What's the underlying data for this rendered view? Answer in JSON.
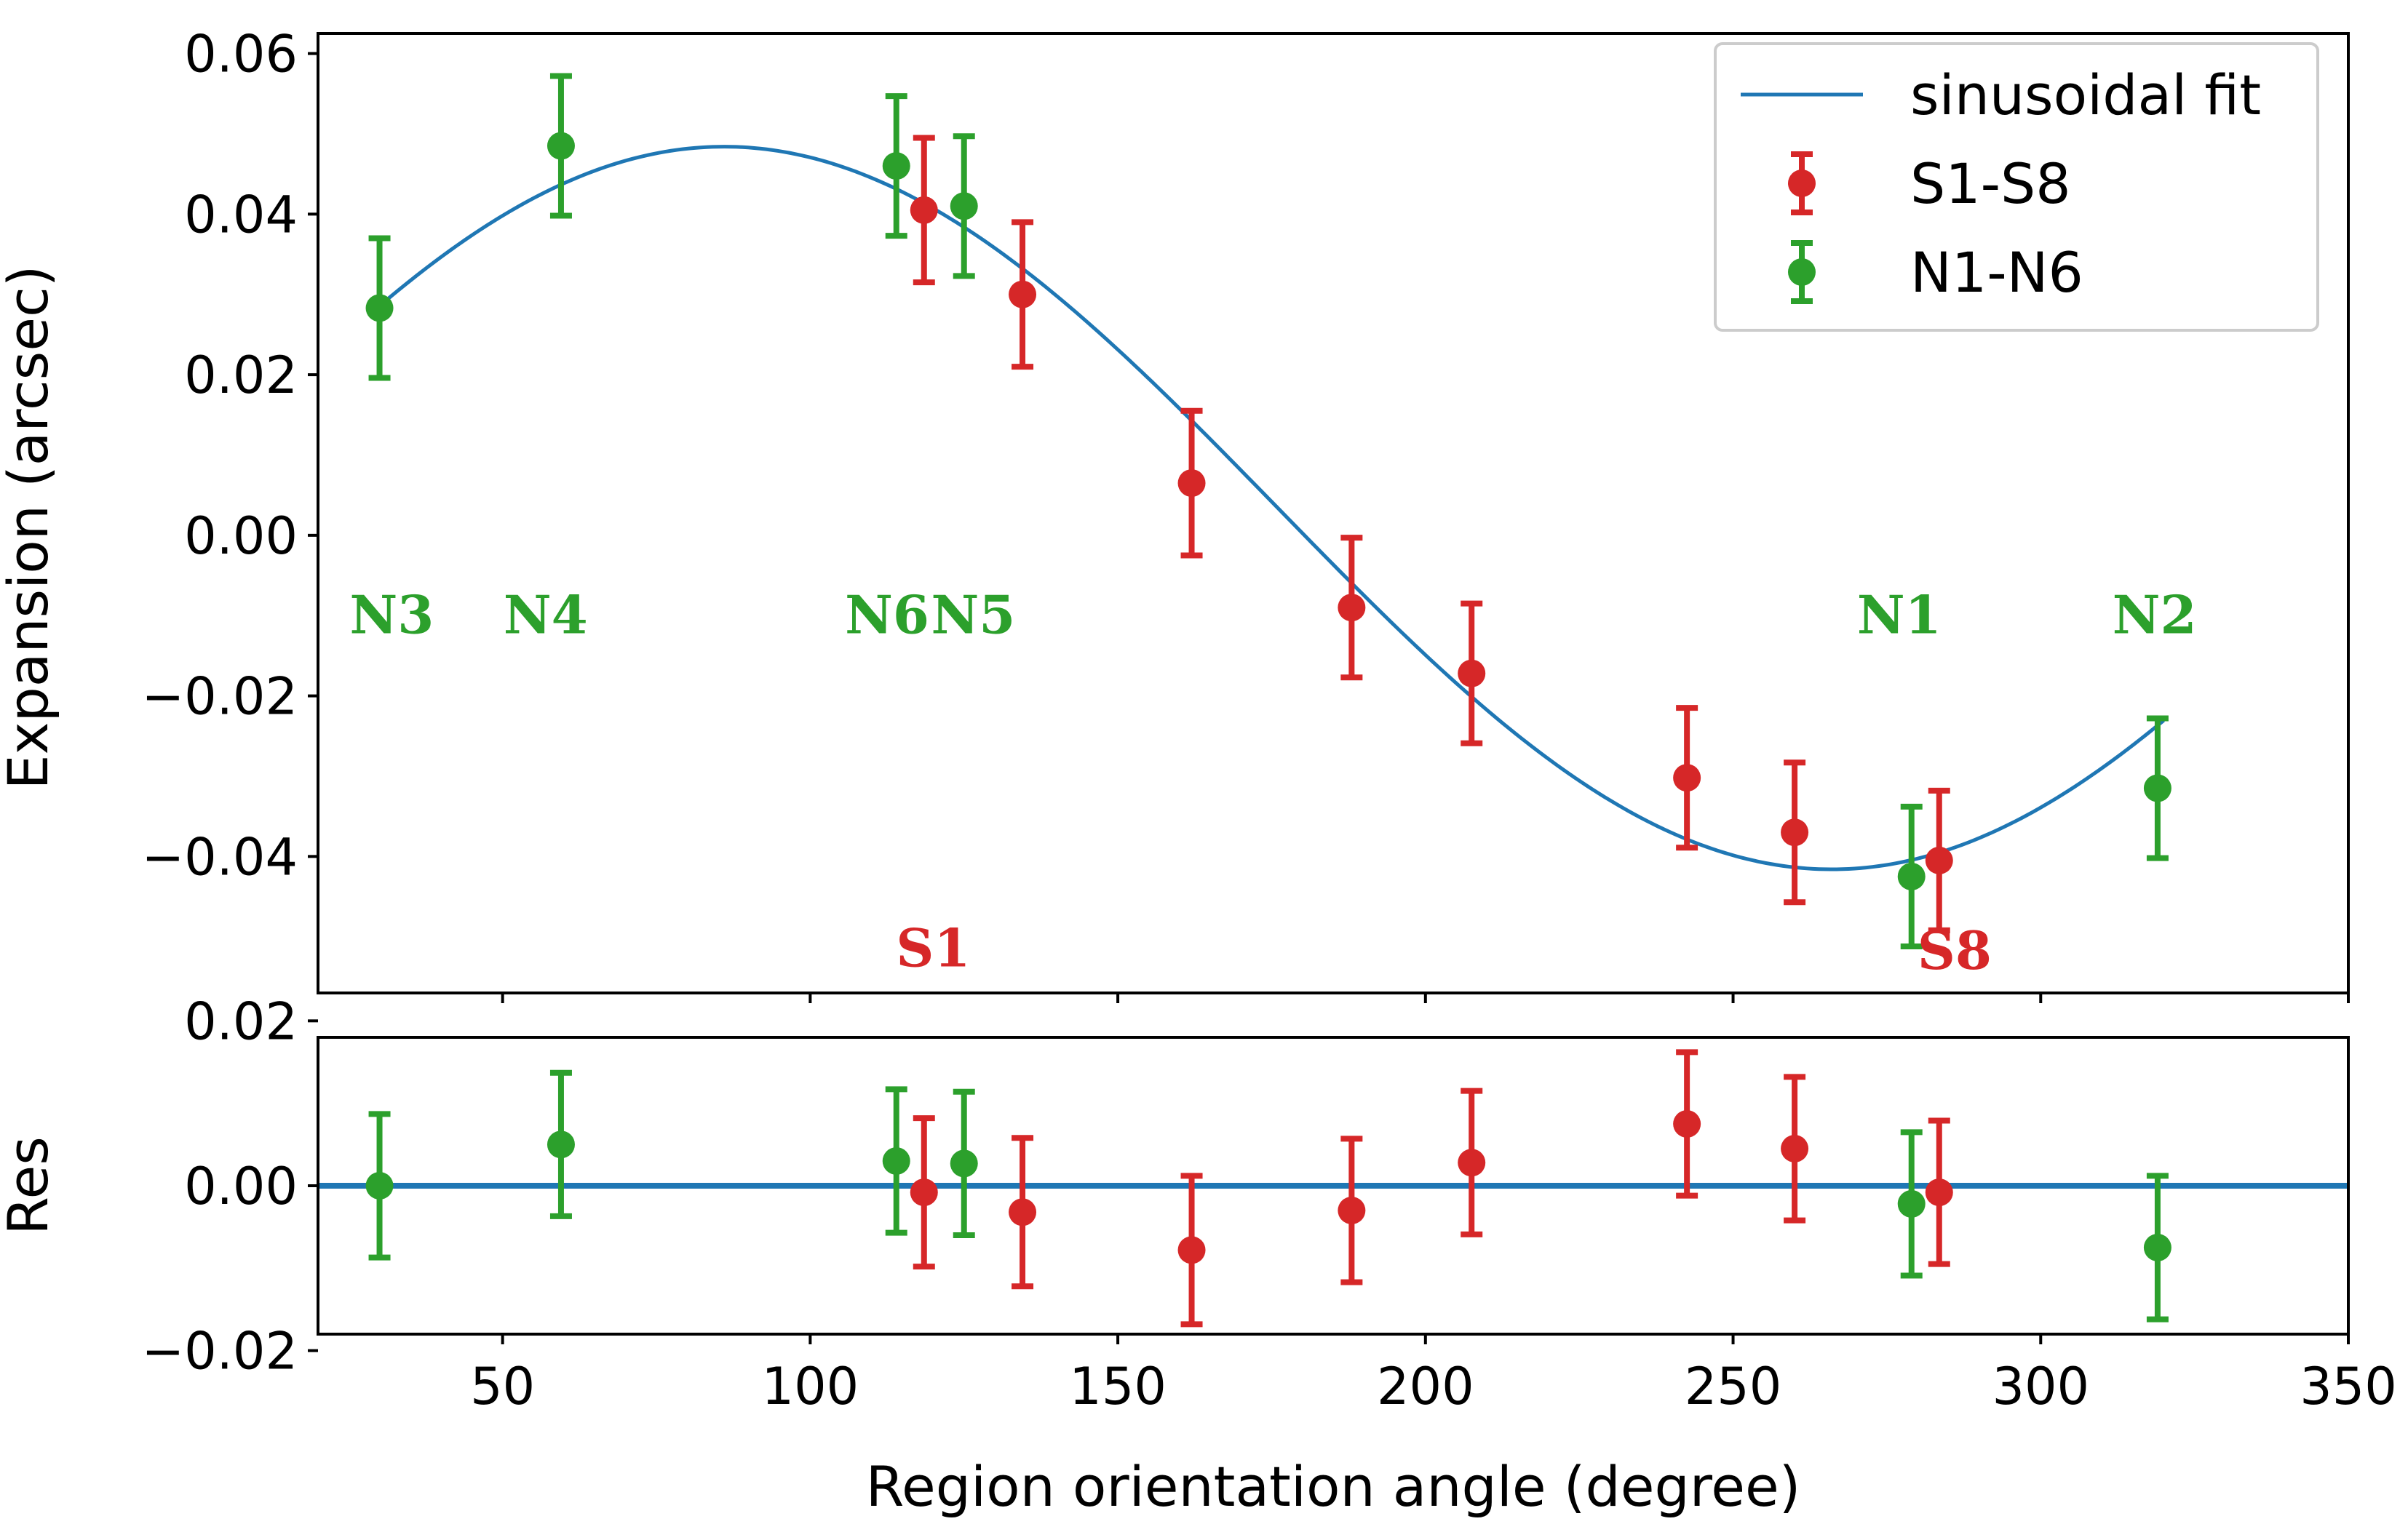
{
  "chart_data": {
    "type": "scatter",
    "colors": {
      "fit": "#1f77b4",
      "south": "#d62728",
      "north": "#2ca02c"
    },
    "xlabel": "Region orientation angle (degree)",
    "xlim": [
      20,
      350
    ],
    "xticks": [
      50,
      100,
      150,
      200,
      250,
      300,
      350
    ],
    "xtick_labels": [
      "50",
      "100",
      "150",
      "200",
      "250",
      "300",
      "350"
    ],
    "top_panel": {
      "ylabel": "Expansion (arcsec)",
      "ylim": [
        -0.057,
        0.0625
      ],
      "yticks": [
        0.06,
        0.04,
        0.02,
        0.0,
        -0.02,
        -0.04
      ],
      "ytick_labels": [
        "0.06",
        "0.04",
        "0.02",
        "0.00",
        "−0.02",
        "−0.04"
      ],
      "fit": {
        "name": "sinusoidal fit",
        "amplitude": 0.045,
        "offset": 0.0034,
        "phase_deg": 86,
        "period_deg": 360,
        "x_range": [
          30,
          320
        ]
      }
    },
    "bottom_panel": {
      "ylabel": "Res",
      "ylim": [
        -0.018,
        0.018
      ],
      "yticks": [
        0.02,
        0.0,
        -0.02
      ],
      "ytick_labels": [
        "0.02",
        "0.00",
        "−0.02"
      ],
      "zero_line": 0
    },
    "legend": {
      "position": "upper right",
      "entries": [
        {
          "label": "sinusoidal fit",
          "kind": "line",
          "color_key": "fit"
        },
        {
          "label": "S1-S8",
          "kind": "errorbar",
          "color_key": "south"
        },
        {
          "label": "N1-N6",
          "kind": "errorbar",
          "color_key": "north"
        }
      ]
    },
    "series": [
      {
        "name": "S1-S8",
        "color_key": "south",
        "points": [
          {
            "x": 118.5,
            "y": 0.0405,
            "err": 0.009,
            "res": -0.0008,
            "res_err": 0.009
          },
          {
            "x": 134.5,
            "y": 0.03,
            "err": 0.009,
            "res": -0.0032,
            "res_err": 0.009
          },
          {
            "x": 162.0,
            "y": 0.0065,
            "err": 0.009,
            "res": -0.0078,
            "res_err": 0.009
          },
          {
            "x": 188.0,
            "y": -0.009,
            "err": 0.0087,
            "res": -0.003,
            "res_err": 0.0087
          },
          {
            "x": 207.5,
            "y": -0.0172,
            "err": 0.0087,
            "res": 0.0028,
            "res_err": 0.0087
          },
          {
            "x": 242.5,
            "y": -0.0302,
            "err": 0.0087,
            "res": 0.0075,
            "res_err": 0.0087
          },
          {
            "x": 260.0,
            "y": -0.037,
            "err": 0.0087,
            "res": 0.0045,
            "res_err": 0.0087
          },
          {
            "x": 283.5,
            "y": -0.0405,
            "err": 0.0087,
            "res": -0.0008,
            "res_err": 0.0087
          }
        ]
      },
      {
        "name": "N1-N6",
        "color_key": "north",
        "points": [
          {
            "x": 30.0,
            "y": 0.0283,
            "err": 0.0087,
            "res": 0.0,
            "res_err": 0.0087
          },
          {
            "x": 59.5,
            "y": 0.0485,
            "err": 0.0087,
            "res": 0.005,
            "res_err": 0.0087
          },
          {
            "x": 114.0,
            "y": 0.046,
            "err": 0.0087,
            "res": 0.003,
            "res_err": 0.0087
          },
          {
            "x": 125.0,
            "y": 0.041,
            "err": 0.0087,
            "res": 0.0027,
            "res_err": 0.0087
          },
          {
            "x": 279.0,
            "y": -0.0425,
            "err": 0.0087,
            "res": -0.0022,
            "res_err": 0.0087
          },
          {
            "x": 319.0,
            "y": -0.0315,
            "err": 0.0087,
            "res": -0.0075,
            "res_err": 0.0087
          }
        ]
      }
    ],
    "annotations": [
      {
        "text": "N3",
        "x": 32,
        "y": -0.0122,
        "color_key": "north"
      },
      {
        "text": "N4",
        "x": 57,
        "y": -0.0122,
        "color_key": "north"
      },
      {
        "text": "N6",
        "x": 112.5,
        "y": -0.0122,
        "color_key": "north"
      },
      {
        "text": "N5",
        "x": 126.5,
        "y": -0.0122,
        "color_key": "north"
      },
      {
        "text": "N1",
        "x": 277,
        "y": -0.0122,
        "color_key": "north"
      },
      {
        "text": "N2",
        "x": 318.5,
        "y": -0.0122,
        "color_key": "north"
      },
      {
        "text": "S1",
        "x": 120,
        "y": -0.0537,
        "color_key": "south"
      },
      {
        "text": "S8",
        "x": 286,
        "y": -0.054,
        "color_key": "south"
      }
    ]
  }
}
